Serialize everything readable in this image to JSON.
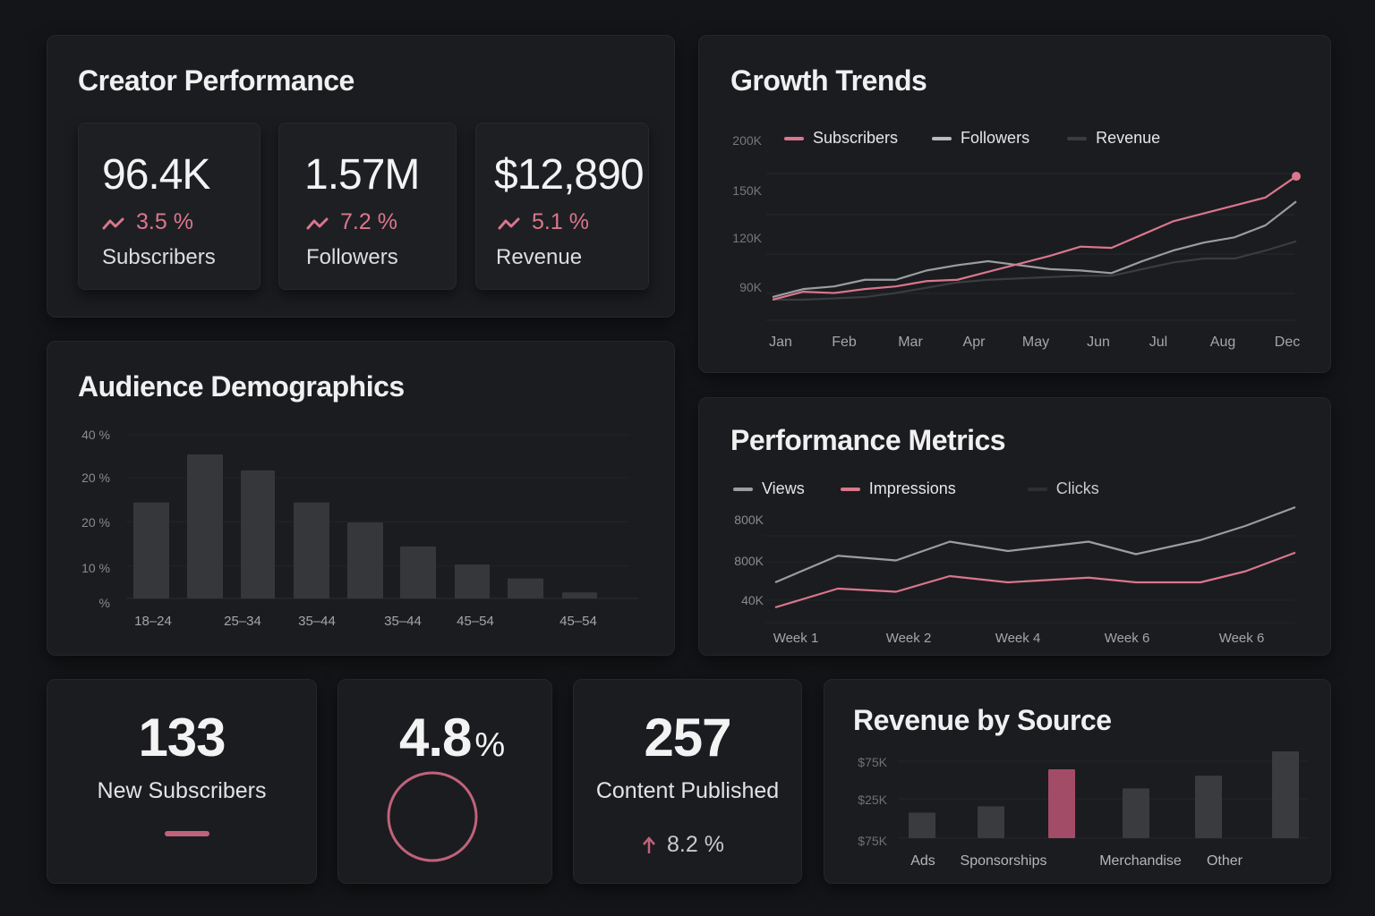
{
  "colors": {
    "background": "#141518",
    "panel": "#1b1c1f",
    "accent_pink": "#d9778c",
    "accent_pink_bar": "#a24c67",
    "series_light": "#9c9d9f",
    "series_dark": "#3b3c40",
    "bar_gray": "#36373a",
    "grid": "#26282c"
  },
  "creator_performance": {
    "title": "Creator Performance",
    "kpis": [
      {
        "value": "96.4K",
        "delta": "3.5 %",
        "label": "Subscribers",
        "icon": "trend-up-icon"
      },
      {
        "value": "1.57M",
        "delta": "7.2 %",
        "label": "Followers",
        "icon": "trend-up-icon"
      },
      {
        "value": "$12,890",
        "delta": "5.1 %",
        "label": "Revenue",
        "icon": "trend-up-icon"
      }
    ]
  },
  "growth_trends": {
    "title": "Growth Trends"
  },
  "audience_demographics": {
    "title": "Audience Demographics"
  },
  "performance_metrics": {
    "title": "Performance Metrics"
  },
  "bottom_cards": {
    "new_subscribers": {
      "value": "133",
      "label": "New Subscribers"
    },
    "rate": {
      "value": "4.8",
      "unit": "%"
    },
    "content_published": {
      "value": "257",
      "label": "Content Published",
      "delta": "8.2 %",
      "icon": "arrow-up-icon"
    }
  },
  "revenue_by_source": {
    "title": "Revenue by Source"
  },
  "chart_data": [
    {
      "id": "growth_trends",
      "type": "line",
      "title": "Growth Trends",
      "x": [
        "Jan",
        "Feb",
        "Mar",
        "Apr",
        "May",
        "Jun",
        "Jul",
        "Aug",
        "Dec"
      ],
      "y_ticks": [
        "200K",
        "150K",
        "120K",
        "90K"
      ],
      "legend": [
        "Subscribers",
        "Followers",
        "Revenue"
      ],
      "legend_position": "top-left",
      "grid": true,
      "series": [
        {
          "name": "Subscribers",
          "color": "#d9778c",
          "end_marker": true,
          "values": [
            80,
            86,
            85,
            88,
            90,
            94,
            95,
            101,
            107,
            113,
            120,
            119,
            129,
            139,
            145,
            151,
            157,
            173
          ]
        },
        {
          "name": "Followers",
          "color": "#9c9d9f",
          "values": [
            82,
            88,
            90,
            95,
            95,
            102,
            106,
            109,
            106,
            103,
            102,
            100,
            109,
            117,
            123,
            127,
            136,
            154
          ]
        },
        {
          "name": "Revenue",
          "color": "#3b3c40",
          "values": [
            80,
            80,
            81,
            82,
            85,
            89,
            93,
            95,
            96,
            97,
            98,
            98,
            103,
            108,
            111,
            111,
            117,
            124
          ]
        }
      ]
    },
    {
      "id": "audience_demographics",
      "type": "bar",
      "title": "Audience Demographics",
      "categories": [
        "18–24",
        "",
        "25–34",
        "35–44",
        "",
        "35–44",
        "45–54",
        "",
        "45–54"
      ],
      "category_labels_shown": [
        "18–24",
        "25–34",
        "35–44",
        "35–44",
        "45–54",
        "45–54"
      ],
      "values": [
        24,
        36,
        32,
        24,
        19,
        13,
        8.5,
        5,
        1.5
      ],
      "y_ticks": [
        "40 %",
        "20 %",
        "20 %",
        "10 %",
        "%"
      ],
      "ylim": [
        0,
        40
      ],
      "grid": true
    },
    {
      "id": "performance_metrics",
      "type": "line",
      "title": "Performance Metrics",
      "x": [
        "Week 1",
        "Week 2",
        "Week 4",
        "Week 6",
        "Week 6"
      ],
      "y_ticks": [
        "800K",
        "800K",
        "40K"
      ],
      "legend": [
        "Views",
        "Impressions",
        "Clicks"
      ],
      "legend_position": "top-left",
      "grid": true,
      "series": [
        {
          "name": "Views",
          "color": "#9c9d9f",
          "values": [
            52,
            69,
            66,
            78,
            72,
            78,
            70,
            79,
            88,
            100
          ]
        },
        {
          "name": "Impressions",
          "color": "#d9778c",
          "values": [
            36,
            48,
            46,
            56,
            52,
            55,
            52,
            52,
            59,
            71
          ]
        },
        {
          "name": "Clicks",
          "color": "#3b3c40",
          "values": []
        }
      ]
    },
    {
      "id": "revenue_by_source",
      "type": "bar",
      "title": "Revenue by Source",
      "categories": [
        "Ads",
        "Sponsorships",
        "",
        "Merchandise",
        "Other",
        ""
      ],
      "values": [
        20,
        25,
        54,
        39,
        49,
        68
      ],
      "highlight_index": 2,
      "y_ticks": [
        "$75K",
        "$25K",
        "$75K"
      ],
      "grid": true
    }
  ]
}
